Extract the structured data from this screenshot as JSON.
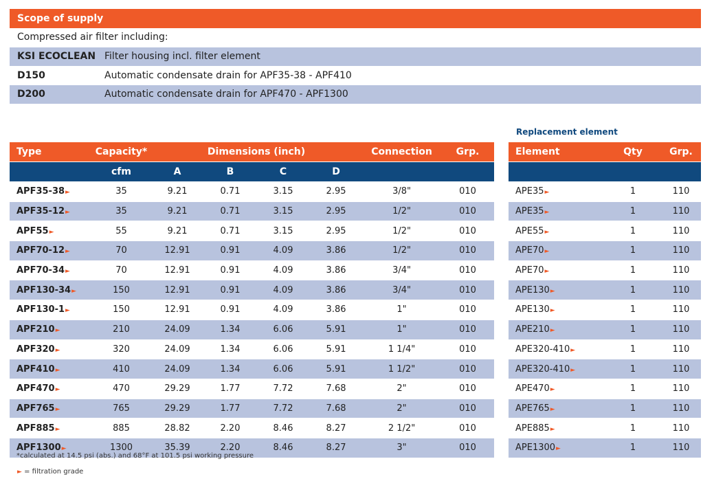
{
  "scope": {
    "title": "Scope of supply",
    "intro": "Compressed air filter including:",
    "items": [
      {
        "code": "KSI ECOCLEAN",
        "desc": "Filter housing incl. filter element"
      },
      {
        "code": "D150",
        "desc": "Automatic condensate drain for APF35-38 - APF410"
      },
      {
        "code": "D200",
        "desc": "Automatic condensate drain for APF470 - APF1300"
      }
    ]
  },
  "main_table": {
    "headers": {
      "type": "Type",
      "capacity": "Capacity*",
      "dimensions": "Dimensions (inch)",
      "connection": "Connection",
      "grp": "Grp."
    },
    "subheaders": {
      "cfm": "cfm",
      "a": "A",
      "b": "B",
      "c": "C",
      "d": "D"
    },
    "rows": [
      [
        "APF35-38",
        "35",
        "9.21",
        "0.71",
        "3.15",
        "2.95",
        "3/8\"",
        "010"
      ],
      [
        "APF35-12",
        "35",
        "9.21",
        "0.71",
        "3.15",
        "2.95",
        "1/2\"",
        "010"
      ],
      [
        "APF55",
        "55",
        "9.21",
        "0.71",
        "3.15",
        "2.95",
        "1/2\"",
        "010"
      ],
      [
        "APF70-12",
        "70",
        "12.91",
        "0.91",
        "4.09",
        "3.86",
        "1/2\"",
        "010"
      ],
      [
        "APF70-34",
        "70",
        "12.91",
        "0.91",
        "4.09",
        "3.86",
        "3/4\"",
        "010"
      ],
      [
        "APF130-34",
        "150",
        "12.91",
        "0.91",
        "4.09",
        "3.86",
        "3/4\"",
        "010"
      ],
      [
        "APF130-1",
        "150",
        "12.91",
        "0.91",
        "4.09",
        "3.86",
        "1\"",
        "010"
      ],
      [
        "APF210",
        "210",
        "24.09",
        "1.34",
        "6.06",
        "5.91",
        "1\"",
        "010"
      ],
      [
        "APF320",
        "320",
        "24.09",
        "1.34",
        "6.06",
        "5.91",
        "1 1/4\"",
        "010"
      ],
      [
        "APF410",
        "410",
        "24.09",
        "1.34",
        "6.06",
        "5.91",
        "1 1/2\"",
        "010"
      ],
      [
        "APF470",
        "470",
        "29.29",
        "1.77",
        "7.72",
        "7.68",
        "2\"",
        "010"
      ],
      [
        "APF765",
        "765",
        "29.29",
        "1.77",
        "7.72",
        "7.68",
        "2\"",
        "010"
      ],
      [
        "APF885",
        "885",
        "28.82",
        "2.20",
        "8.46",
        "8.27",
        "2 1/2\"",
        "010"
      ],
      [
        "APF1300",
        "1300",
        "35.39",
        "2.20",
        "8.46",
        "8.27",
        "3\"",
        "010"
      ]
    ]
  },
  "replacement": {
    "title": "Replacement element",
    "headers": {
      "element": "Element",
      "qty": "Qty",
      "grp": "Grp."
    },
    "rows": [
      [
        "APE35",
        "1",
        "110"
      ],
      [
        "APE35",
        "1",
        "110"
      ],
      [
        "APE55",
        "1",
        "110"
      ],
      [
        "APE70",
        "1",
        "110"
      ],
      [
        "APE70",
        "1",
        "110"
      ],
      [
        "APE130",
        "1",
        "110"
      ],
      [
        "APE130",
        "1",
        "110"
      ],
      [
        "APE210",
        "1",
        "110"
      ],
      [
        "APE320-410",
        "1",
        "110"
      ],
      [
        "APE320-410",
        "1",
        "110"
      ],
      [
        "APE470",
        "1",
        "110"
      ],
      [
        "APE765",
        "1",
        "110"
      ],
      [
        "APE885",
        "1",
        "110"
      ],
      [
        "APE1300",
        "1",
        "110"
      ]
    ]
  },
  "footnotes": {
    "capacity": "*calculated at 14.5 psi (abs.) and 68°F at 101.5 psi working pressure",
    "filtration": "= filtration grade"
  },
  "colors": {
    "orange": "#ef5a28",
    "navy": "#10497e",
    "shade": "#b8c3de"
  }
}
